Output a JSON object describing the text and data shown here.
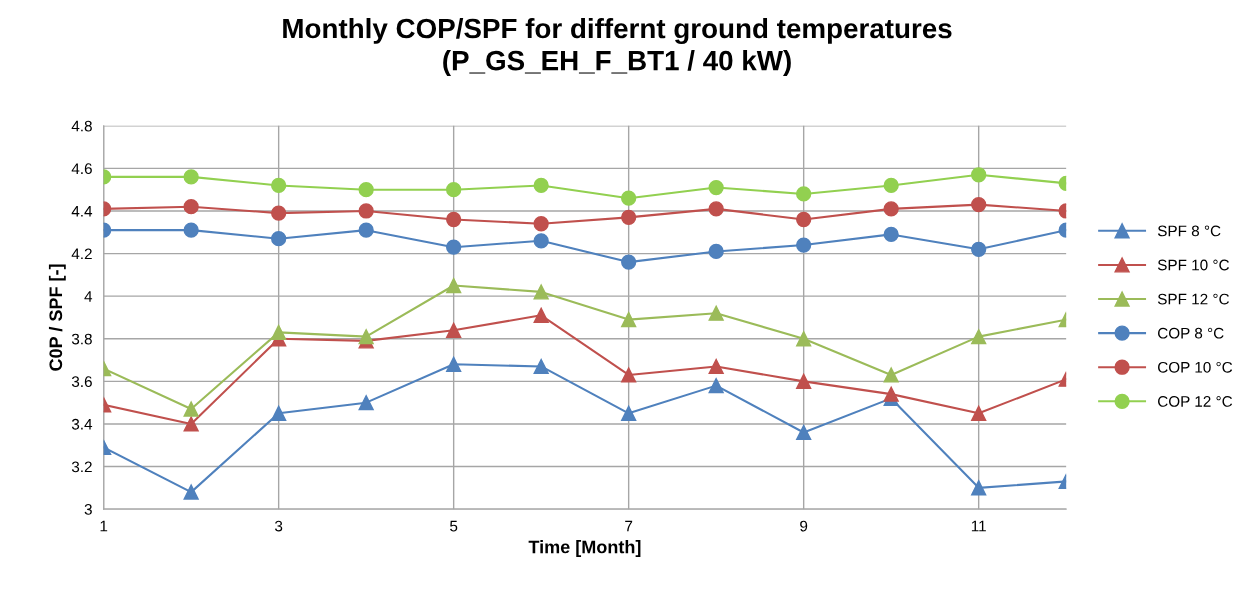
{
  "chart_data": {
    "type": "line",
    "title": "Monthly COP/SPF for differnt ground temperatures\n(P_GS_EH_F_BT1 / 40 kW)",
    "xlabel": "Time [Month]",
    "ylabel": "C0P / SPF [-]",
    "x": [
      1,
      2,
      3,
      4,
      5,
      6,
      7,
      8,
      9,
      10,
      11,
      12
    ],
    "xlim": [
      1,
      12
    ],
    "xticks": [
      1,
      3,
      5,
      7,
      9,
      11
    ],
    "ylim": [
      3,
      4.8
    ],
    "yticks": [
      3,
      3.2,
      3.4,
      3.6,
      3.8,
      4,
      4.2,
      4.4,
      4.6,
      4.8
    ],
    "grid": true,
    "legend": "right",
    "line_style": "solid",
    "series": [
      {
        "name": "SPF 8 °C",
        "color": "#4f81bd",
        "marker": "triangle",
        "values": [
          3.29,
          3.08,
          3.45,
          3.5,
          3.68,
          3.67,
          3.45,
          3.58,
          3.36,
          3.52,
          3.1,
          3.13
        ]
      },
      {
        "name": "SPF 10 °C",
        "color": "#c0504d",
        "marker": "triangle",
        "values": [
          3.49,
          3.4,
          3.8,
          3.79,
          3.84,
          3.91,
          3.63,
          3.67,
          3.6,
          3.54,
          3.45,
          3.61
        ]
      },
      {
        "name": "SPF 12 °C",
        "color": "#9bbb59",
        "marker": "triangle",
        "values": [
          3.66,
          3.47,
          3.83,
          3.81,
          4.05,
          4.02,
          3.89,
          3.92,
          3.8,
          3.63,
          3.81,
          3.89
        ]
      },
      {
        "name": "COP 8 °C",
        "color": "#4f81bd",
        "marker": "circle",
        "values": [
          4.31,
          4.31,
          4.27,
          4.31,
          4.23,
          4.26,
          4.16,
          4.21,
          4.24,
          4.29,
          4.22,
          4.31
        ]
      },
      {
        "name": "COP 10 °C",
        "color": "#c0504d",
        "marker": "circle",
        "values": [
          4.41,
          4.42,
          4.39,
          4.4,
          4.36,
          4.34,
          4.37,
          4.41,
          4.36,
          4.41,
          4.43,
          4.4
        ]
      },
      {
        "name": "COP 12 °C",
        "color": "#92d050",
        "marker": "circle",
        "values": [
          4.56,
          4.56,
          4.52,
          4.5,
          4.5,
          4.52,
          4.46,
          4.51,
          4.48,
          4.52,
          4.57,
          4.53
        ]
      }
    ]
  }
}
